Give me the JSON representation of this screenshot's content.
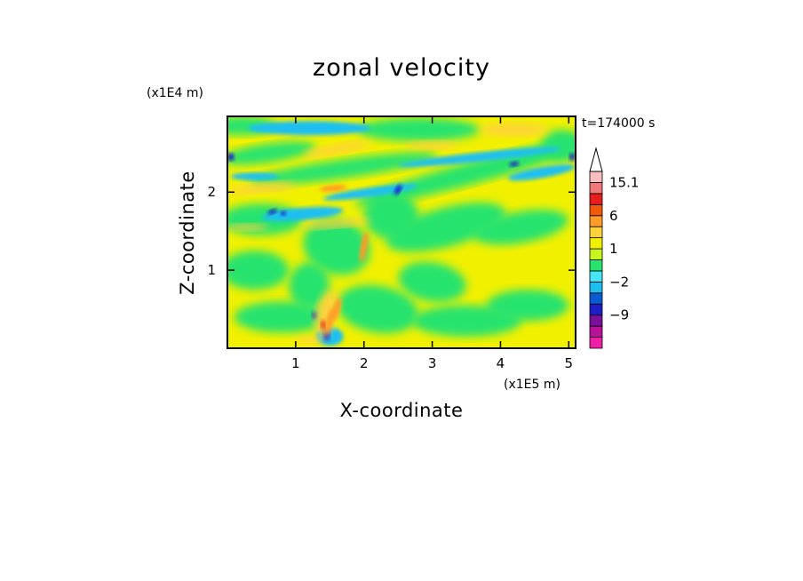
{
  "chart_data": {
    "type": "heatmap",
    "title": "zonal velocity",
    "xlabel": "X-coordinate",
    "ylabel": "Z-coordinate",
    "x_unit": "(x1E5 m)",
    "y_unit": "(x1E4 m)",
    "time_label": "t=174000 s",
    "xlim": [
      0,
      5.1
    ],
    "ylim": [
      0,
      2.97
    ],
    "x_ticks": [
      {
        "value": 1,
        "label": "1"
      },
      {
        "value": 2,
        "label": "2"
      },
      {
        "value": 3,
        "label": "3"
      },
      {
        "value": 4,
        "label": "4"
      },
      {
        "value": 5,
        "label": "5"
      }
    ],
    "y_ticks": [
      {
        "value": 1,
        "label": "1"
      },
      {
        "value": 2,
        "label": "2"
      }
    ],
    "colorbar": {
      "levels": [
        -16,
        -12,
        -9,
        -6,
        -4,
        -2,
        -1,
        0,
        1,
        2,
        4,
        6,
        9,
        12,
        15.1
      ],
      "colors": [
        "#ee1ea6",
        "#b7129a",
        "#7a0f9a",
        "#1e1ec8",
        "#0a5ad2",
        "#1ebff0",
        "#46e6f8",
        "#28e36e",
        "#c8f51e",
        "#f0f000",
        "#ffd23c",
        "#ff9b28",
        "#f05a0a",
        "#e61e1e",
        "#f07878",
        "#fbbebe"
      ],
      "labels": [
        {
          "value": 15.1,
          "label": "15.1"
        },
        {
          "value": 6,
          "label": "6"
        },
        {
          "value": 1,
          "label": "1"
        },
        {
          "value": -2,
          "label": "−2"
        },
        {
          "value": -9,
          "label": "−9"
        }
      ]
    },
    "field_description_colors": {
      "background": "#f0f000",
      "weak_negative": "#28e36e",
      "moderate_negative": "#1ebff0",
      "strong_negative": "#1e1ec8",
      "weak_positive": "#ffd23c",
      "moderate_positive": "#ff9b28",
      "strong_positive": "#e61e1e"
    }
  }
}
